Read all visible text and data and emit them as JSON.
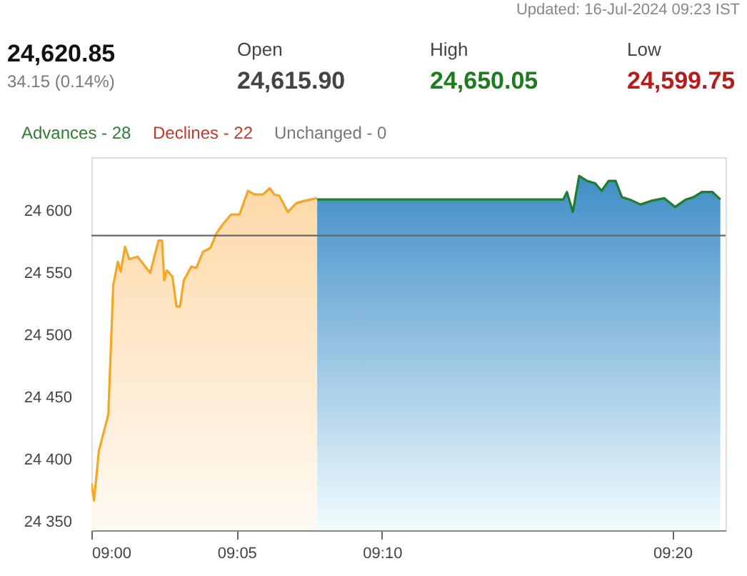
{
  "chart_data": {
    "type": "area",
    "annotations": [
      "Updated: 16-Jul-2024 09:23 IST",
      "24,620.85",
      "34.15 (0.14%)",
      "Open",
      "24,615.90",
      "High",
      "24,650.05",
      "Low",
      "24,599.75",
      "Advances - 28",
      "Declines - 22",
      "Unchanged - 0"
    ],
    "series": [
      {
        "color": "#f5a623",
        "x": [
          9.0,
          9.0015,
          9.0043,
          9.0097,
          9.0125,
          9.0152,
          9.0168,
          9.0193,
          9.0217,
          9.0265,
          9.0337,
          9.0385,
          9.0405,
          9.0418,
          9.0433,
          9.0465,
          9.0488,
          9.0508,
          9.053,
          9.0573,
          9.0602,
          9.064,
          9.0682,
          9.0718,
          9.0753,
          9.0802,
          9.085,
          9.0875,
          9.0898,
          9.0935,
          9.0983,
          9.1023,
          9.105,
          9.1078,
          9.1127,
          9.1175,
          9.1223,
          9.1295
        ],
        "values": [
          24381,
          24367,
          24407,
          24436,
          24540,
          24559,
          24551,
          24571,
          24561,
          24563,
          24550,
          24576,
          24576,
          24544,
          24552,
          24547,
          24523,
          24523,
          24544,
          24555,
          24554,
          24567,
          24570,
          24582,
          24589,
          24597,
          24597,
          24607,
          24616,
          24613,
          24613,
          24618,
          24613,
          24612,
          24599,
          24606,
          24608,
          24610
        ]
      },
      {
        "color": "#1a7f2e",
        "x": [
          9.1295,
          9.2707,
          9.2728,
          9.2762,
          9.2798,
          9.2843,
          9.289,
          9.2927,
          9.2967,
          9.3007,
          9.3043,
          9.3088,
          9.315,
          9.3212,
          9.3287,
          9.3348,
          9.341,
          9.3455,
          9.3502,
          9.3563,
          9.3608
        ],
        "values": [
          24609,
          24609,
          24615,
          24599,
          24628,
          24624,
          24622,
          24616,
          24624,
          24624,
          24611,
          24609,
          24605,
          24608,
          24610,
          24603,
          24609,
          24611,
          24615,
          24615,
          24609
        ]
      }
    ],
    "xlim": [
      9.0,
      9.3638
    ],
    "xticks": [
      {
        "value": 9.0,
        "label": "09:00"
      },
      {
        "value": 9.0833,
        "label": "09:05"
      },
      {
        "value": 9.1667,
        "label": "09:10"
      },
      {
        "value": 9.3333,
        "label": "09:20"
      }
    ],
    "ylim": [
      24343,
      24643
    ],
    "yticks": [
      {
        "value": 24350,
        "label": "24 350"
      },
      {
        "value": 24400,
        "label": "24 400"
      },
      {
        "value": 24450,
        "label": "24 450"
      },
      {
        "value": 24500,
        "label": "24 500"
      },
      {
        "value": 24550,
        "label": "24 550"
      },
      {
        "value": 24600,
        "label": "24 600"
      }
    ],
    "ref_lines": [
      {
        "axis": "y",
        "value": 24580,
        "color": "#666666"
      }
    ]
  }
}
